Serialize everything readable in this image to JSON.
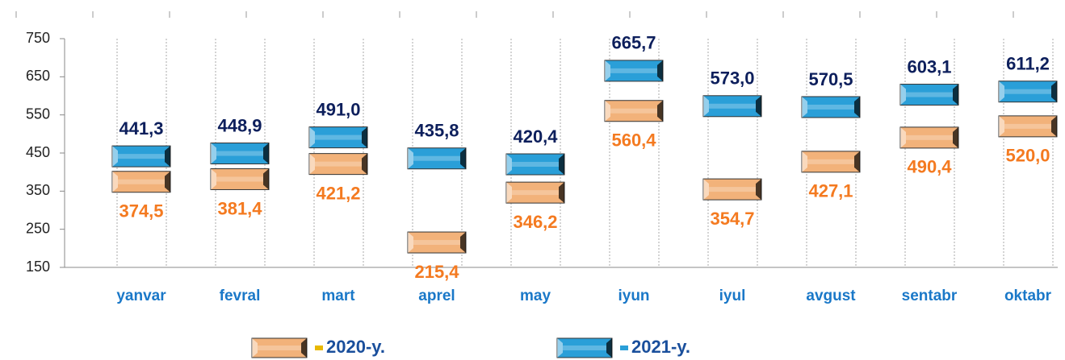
{
  "chart_data": {
    "type": "marker",
    "categories": [
      "yanvar",
      "fevral",
      "mart",
      "aprel",
      "may",
      "iyun",
      "iyul",
      "avgust",
      "sentabr",
      "oktabr"
    ],
    "series": [
      {
        "name": "2020-y.",
        "color": "#f2b27a",
        "values": [
          374.5,
          381.4,
          421.2,
          215.4,
          346.2,
          560.4,
          354.7,
          427.1,
          490.4,
          520.0
        ],
        "value_labels": [
          "374,5",
          "381,4",
          "421,2",
          "215,4",
          "346,2",
          "560,4",
          "354,7",
          "427,1",
          "490,4",
          "520,0"
        ]
      },
      {
        "name": "2021-y.",
        "color": "#2a9fd8",
        "values": [
          441.3,
          448.9,
          491.0,
          435.8,
          420.4,
          665.7,
          573.0,
          570.5,
          603.1,
          611.2
        ],
        "value_labels": [
          "441,3",
          "448,9",
          "491,0",
          "435,8",
          "420,4",
          "665,7",
          "573,0",
          "570,5",
          "603,1",
          "611,2"
        ]
      }
    ],
    "ylim": [
      150,
      750
    ],
    "yticks": [
      150,
      250,
      350,
      450,
      550,
      650,
      750
    ],
    "grid": true
  }
}
